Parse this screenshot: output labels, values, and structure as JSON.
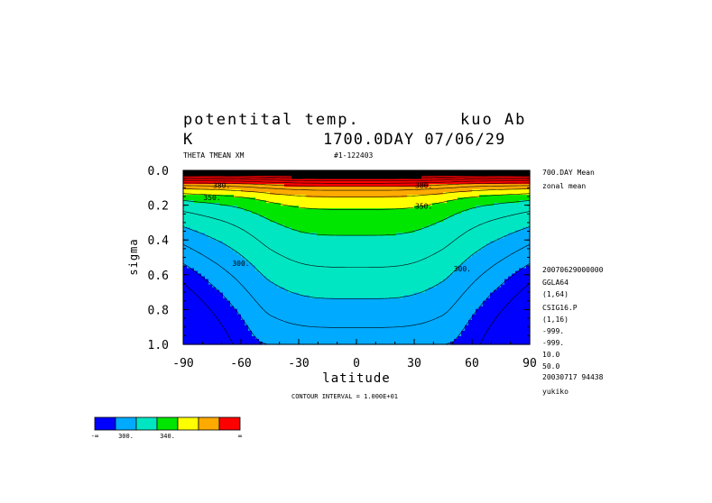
{
  "header": {
    "title": "potentital temp.",
    "model": "kuo Ab",
    "units": "K",
    "run": "1700.0DAY 07/06/29",
    "variable": "THETA TMEAN XM",
    "record": "#1-122403"
  },
  "side_info": [
    "700.DAY Mean",
    "zonal mean",
    "20070629000000",
    "GGLA64",
    "(1,64)",
    "CSIG16.P",
    "(1,16)",
    "-999.",
    "-999.",
    "10.0",
    "50.0",
    "20030717  94438",
    "yukiko"
  ],
  "footer": {
    "contour_interval": "CONTOUR INTERVAL = 1.000E+01"
  },
  "colorbar": {
    "colors": [
      "#0000ff",
      "#00aaff",
      "#00e6c3",
      "#00e600",
      "#ffff00",
      "#ffaa00",
      "#ff0000"
    ],
    "labels": [
      "-∞",
      "300.",
      "340.",
      "∞"
    ]
  },
  "chart_data": {
    "type": "heatmap",
    "xlabel": "latitude",
    "ylabel": "sigma",
    "xlim": [
      -90,
      90
    ],
    "ylim": [
      1.0,
      0.0
    ],
    "x_ticks": [
      "-90",
      "-60",
      "-30",
      "0",
      "30",
      "60",
      "90"
    ],
    "y_ticks": [
      "0.0",
      "0.2",
      "0.4",
      "0.6",
      "0.8",
      "1.0"
    ],
    "contour_interval": 10,
    "contour_labels": [
      {
        "text": "380.",
        "lat": -70,
        "sigma": 0.1
      },
      {
        "text": "380.",
        "lat": 35,
        "sigma": 0.1
      },
      {
        "text": "350.",
        "lat": -75,
        "sigma": 0.17
      },
      {
        "text": "350.",
        "lat": 35,
        "sigma": 0.22
      },
      {
        "text": "300.",
        "lat": -60,
        "sigma": 0.55
      },
      {
        "text": "300.",
        "lat": 55,
        "sigma": 0.58
      }
    ],
    "color_levels": [
      {
        "name": "< 300",
        "color": "#0000ff"
      },
      {
        "name": "300-320",
        "color": "#00aaff"
      },
      {
        "name": "320-340",
        "color": "#00e6c3"
      },
      {
        "name": "340-350",
        "color": "#00e600"
      },
      {
        "name": "350-360",
        "color": "#ffff00"
      },
      {
        "name": "360-380",
        "color": "#ffaa00"
      },
      {
        "name": "> 380",
        "color": "#ff0000"
      }
    ]
  }
}
